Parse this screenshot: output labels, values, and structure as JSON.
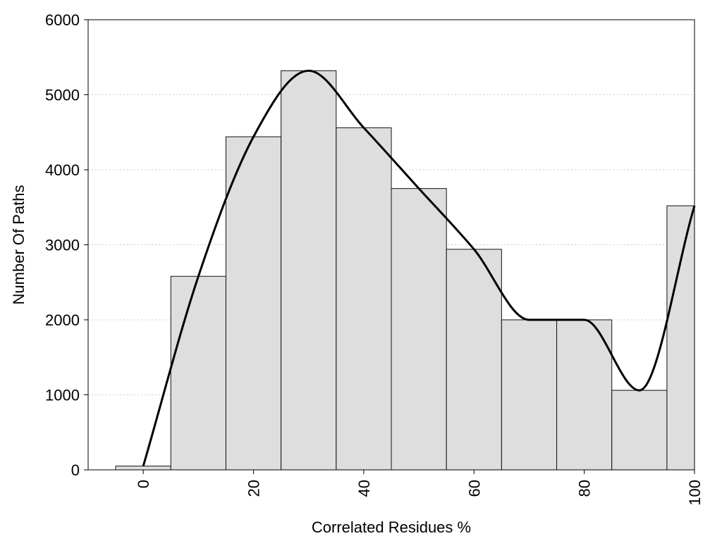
{
  "chart_data": {
    "type": "bar",
    "title": "",
    "xlabel": "Correlated Residues %",
    "ylabel": "Number Of Paths",
    "xlim": [
      -10,
      100
    ],
    "ylim": [
      0,
      6000
    ],
    "bar_width": 10,
    "categories": [
      "0",
      "10",
      "20",
      "30",
      "40",
      "50",
      "60",
      "70",
      "80",
      "90",
      "100"
    ],
    "x": [
      0,
      10,
      20,
      30,
      40,
      50,
      60,
      70,
      80,
      90,
      100
    ],
    "values": [
      50,
      2580,
      4440,
      5320,
      4560,
      3750,
      2940,
      2000,
      2000,
      1060,
      3520
    ],
    "x_ticks": [
      0,
      20,
      40,
      60,
      80,
      100
    ],
    "x_tick_labels": [
      "0",
      "20",
      "40",
      "60",
      "80",
      "100"
    ],
    "y_ticks": [
      0,
      1000,
      2000,
      3000,
      4000,
      5000,
      6000
    ],
    "y_tick_labels": [
      "0",
      "1000",
      "2000",
      "3000",
      "4000",
      "5000",
      "6000"
    ],
    "grid": "horizontal dotted",
    "smooth_curve": {
      "x": [
        0,
        10,
        20,
        30,
        40,
        50,
        60,
        70,
        80,
        90,
        100
      ],
      "y": [
        50,
        2580,
        4440,
        5320,
        4560,
        3750,
        2940,
        2000,
        2000,
        1060,
        3520
      ]
    },
    "colors": {
      "bar_fill": "#dedede",
      "bar_stroke": "#111111",
      "curve": "#000000",
      "grid": "#cccccc"
    }
  }
}
